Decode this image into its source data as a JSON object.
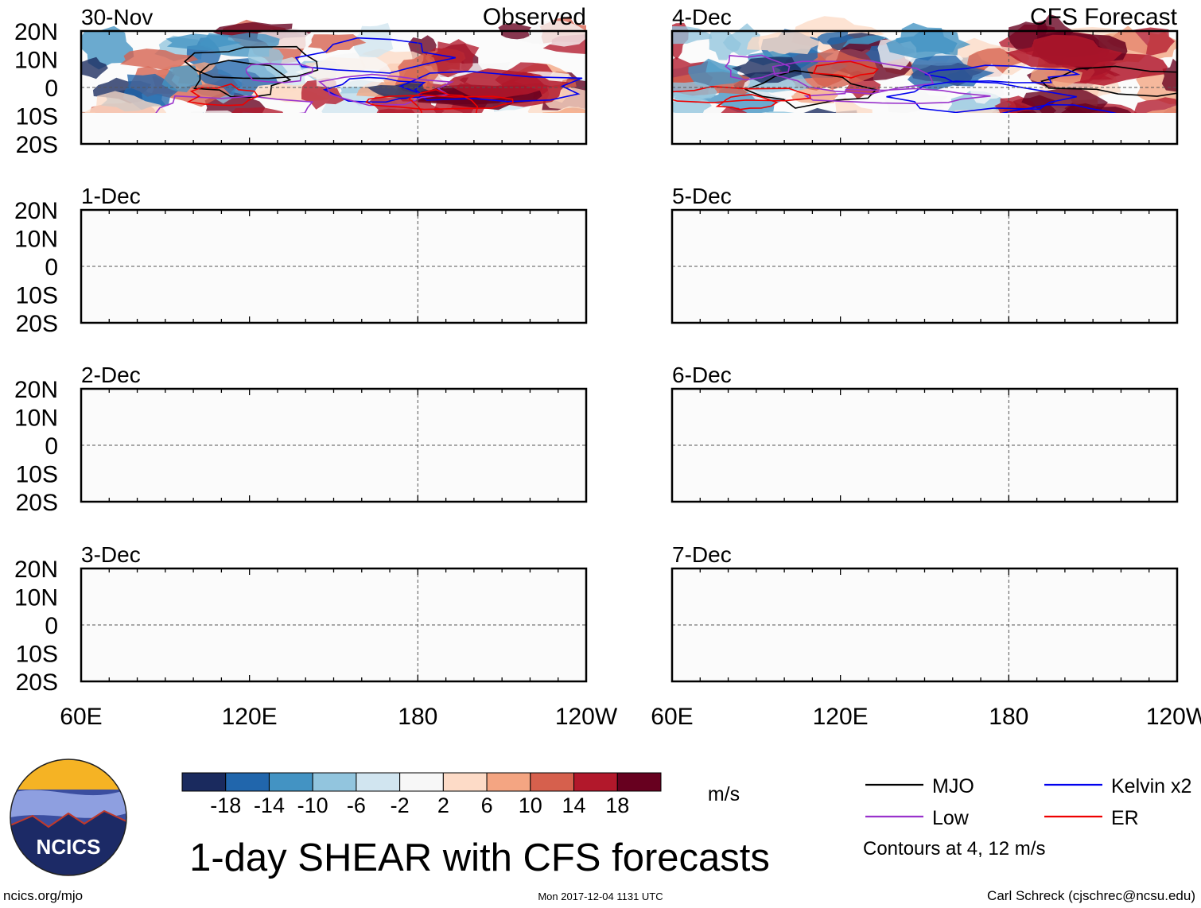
{
  "chart_data": {
    "type": "heatmap",
    "title": "1-day SHEAR with CFS forecasts",
    "units": "m/s",
    "columns": [
      {
        "label": "Observed",
        "panels": [
          "30-Nov",
          "1-Dec",
          "2-Dec",
          "3-Dec"
        ]
      },
      {
        "label": "CFS Forecast",
        "panels": [
          "4-Dec",
          "5-Dec",
          "6-Dec",
          "7-Dec"
        ]
      }
    ],
    "lat_range": [
      -20,
      20
    ],
    "lon_range": [
      60,
      240
    ],
    "lat_ticks": [
      {
        "value": 20,
        "label": "20N"
      },
      {
        "value": 10,
        "label": "10N"
      },
      {
        "value": 0,
        "label": "0"
      },
      {
        "value": -10,
        "label": "10S"
      },
      {
        "value": -20,
        "label": "20S"
      }
    ],
    "lon_ticks": [
      {
        "value": 60,
        "label": "60E"
      },
      {
        "value": 120,
        "label": "120E"
      },
      {
        "value": 180,
        "label": "180"
      },
      {
        "value": 240,
        "label": "120W"
      }
    ],
    "colorbar": {
      "levels": [
        "-18",
        "-14",
        "-10",
        "-6",
        "-2",
        "2",
        "6",
        "10",
        "14",
        "18"
      ],
      "colors": [
        "#1a2a5e",
        "#2166ac",
        "#4393c3",
        "#92c5de",
        "#d1e5f0",
        "#f7f7f7",
        "#fddbc7",
        "#f4a582",
        "#d6604d",
        "#b2182b",
        "#67001f"
      ]
    },
    "legend": {
      "entries": [
        {
          "name": "MJO",
          "color": "#000000"
        },
        {
          "name": "Kelvin x2",
          "color": "#0000ee"
        },
        {
          "name": "Low",
          "color": "#9932cc"
        },
        {
          "name": "ER",
          "color": "#ee0000"
        }
      ],
      "note": "Contours at 4, 12 m/s"
    }
  },
  "logo": {
    "text": "NCICS"
  },
  "footer": {
    "url": "ncics.org/mjo",
    "timestamp": "Mon 2017-12-04 1131 UTC",
    "author": "Carl Schreck (cjschrec@ncsu.edu)"
  }
}
